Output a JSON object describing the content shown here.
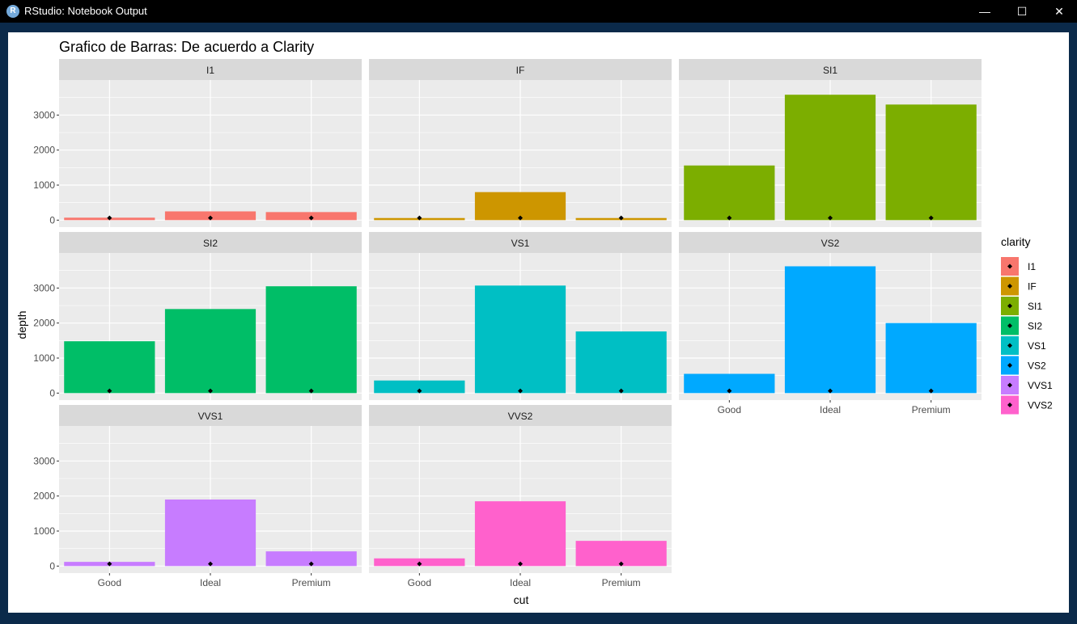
{
  "window": {
    "title": "RStudio: Notebook Output",
    "app_icon": "R",
    "controls": {
      "minimize": "—",
      "maximize": "☐",
      "close": "✕"
    }
  },
  "colors": {
    "panel_bg": "#ebebeb",
    "strip_bg": "#d9d9d9",
    "grid": "#ffffff",
    "point": "#000000"
  },
  "chart_data": {
    "type": "bar",
    "title": "Grafico de Barras: De acuerdo a Clarity",
    "xlabel": "cut",
    "ylabel": "depth",
    "categories": [
      "Good",
      "Ideal",
      "Premium"
    ],
    "ylim": [
      -200,
      4000
    ],
    "yticks": [
      0,
      1000,
      2000,
      3000
    ],
    "ytick_labels": [
      "0",
      "1000",
      "2000",
      "3000"
    ],
    "point_value": 62,
    "grid": true,
    "legend": {
      "title": "clarity",
      "position": "right"
    },
    "facets": [
      {
        "name": "I1",
        "color": "#f8766d",
        "values": [
          70,
          250,
          230
        ]
      },
      {
        "name": "IF",
        "color": "#cd9600",
        "values": [
          60,
          800,
          60
        ]
      },
      {
        "name": "SI1",
        "color": "#7cae00",
        "values": [
          1560,
          3580,
          3300
        ]
      },
      {
        "name": "SI2",
        "color": "#00be67",
        "values": [
          1480,
          2400,
          3050
        ]
      },
      {
        "name": "VS1",
        "color": "#00bfc4",
        "values": [
          360,
          3070,
          1760
        ]
      },
      {
        "name": "VS2",
        "color": "#00a9ff",
        "values": [
          550,
          3620,
          2000
        ]
      },
      {
        "name": "VVS1",
        "color": "#c77cff",
        "values": [
          120,
          1900,
          420
        ]
      },
      {
        "name": "VVS2",
        "color": "#ff61cc",
        "values": [
          220,
          1850,
          720
        ]
      }
    ]
  }
}
